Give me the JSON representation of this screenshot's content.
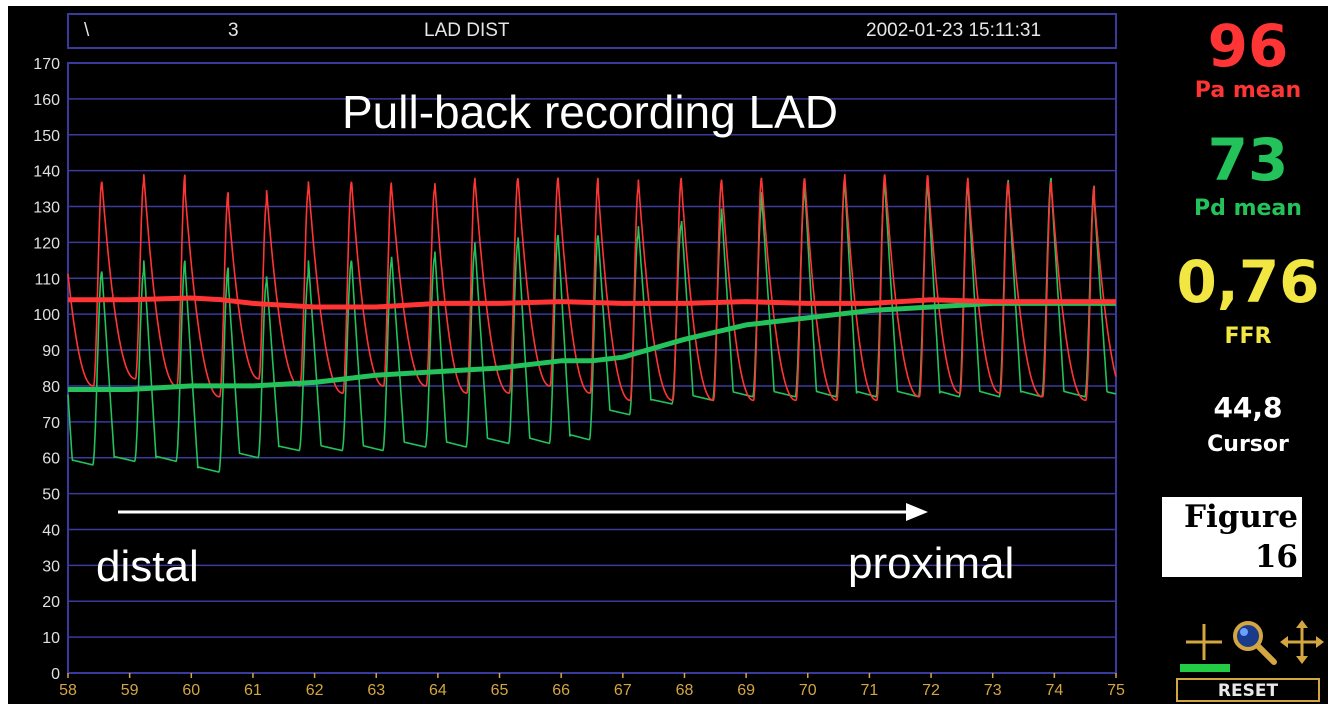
{
  "header": {
    "left_fragment": "\\",
    "fragment_2": "3",
    "vessel": "LAD DIST",
    "datetime": "2002-01-23 15:11:31"
  },
  "readouts": {
    "pa_value": "96",
    "pa_label": "Pa mean",
    "pd_value": "73",
    "pd_label": "Pd mean",
    "ffr_value": "0,76",
    "ffr_label": "FFR",
    "cursor_value": "44,8",
    "cursor_label": "Cursor"
  },
  "colors": {
    "pa": "#ff3535",
    "pd": "#23c25a",
    "ffr": "#f2e643",
    "grid": "#3a3a9c",
    "tick_x": "#d4a640",
    "tick_y": "#e0e0e0",
    "accent_tool": "#d4a640"
  },
  "figure_caption": {
    "line1": "Figure",
    "line2": "16"
  },
  "tools": {
    "icons": [
      "crosshair-plus-icon",
      "magnifier-icon",
      "move-arrows-icon"
    ],
    "reset_label": "RESET"
  },
  "chart_data": {
    "type": "line",
    "title": "Pull-back recording LAD",
    "annotations": [
      "distal",
      "proximal"
    ],
    "xlim": [
      58,
      75
    ],
    "ylim": [
      0,
      170
    ],
    "x_ticks": [
      58,
      59,
      60,
      61,
      62,
      63,
      64,
      65,
      66,
      67,
      68,
      69,
      70,
      71,
      72,
      73,
      74,
      75
    ],
    "y_ticks": [
      0,
      10,
      20,
      30,
      40,
      50,
      60,
      70,
      80,
      90,
      100,
      110,
      120,
      130,
      140,
      150,
      160,
      170
    ],
    "grid": true,
    "series": [
      {
        "name": "Pa mean",
        "kind": "mean",
        "x": [
          58,
          59,
          60,
          60.5,
          61,
          61.5,
          62,
          63,
          64,
          65,
          66,
          67,
          68,
          69,
          70,
          71,
          72,
          73,
          74,
          75
        ],
        "y": [
          104,
          104,
          104.5,
          104,
          103,
          102.5,
          102,
          102,
          103,
          103,
          103.5,
          103,
          103,
          103.5,
          103,
          103,
          104,
          103.5,
          103.5,
          103.5
        ]
      },
      {
        "name": "Pd mean",
        "kind": "mean",
        "x": [
          58,
          59,
          60,
          61,
          62,
          63,
          64,
          65,
          66,
          66.5,
          67,
          68,
          69,
          70,
          71,
          72,
          73,
          74,
          75
        ],
        "y": [
          79,
          79,
          80,
          80,
          81,
          83,
          84,
          85,
          87,
          87,
          88,
          93,
          97,
          99,
          101,
          102,
          103,
          103,
          103
        ]
      },
      {
        "name": "Pa",
        "kind": "phasic",
        "beat_times": [
          58.55,
          59.23,
          59.9,
          60.6,
          61.22,
          61.9,
          62.6,
          63.25,
          63.95,
          64.6,
          65.3,
          65.95,
          66.6,
          67.25,
          67.95,
          68.6,
          69.25,
          69.95,
          70.6,
          71.25,
          71.95,
          72.6,
          73.25,
          73.95,
          74.65
        ],
        "systolic": [
          137,
          139,
          134,
          131,
          135,
          137,
          137,
          135,
          137,
          138,
          138,
          138,
          135,
          138,
          137,
          138,
          138,
          138,
          139,
          139,
          138,
          137,
          137,
          136,
          132
        ],
        "diastolic": [
          80,
          82,
          80,
          77,
          82,
          80,
          78,
          80,
          80,
          78,
          78,
          80,
          78,
          76,
          76,
          76,
          76,
          76,
          76,
          76,
          77,
          78,
          78,
          77,
          76
        ]
      },
      {
        "name": "Pd",
        "kind": "phasic",
        "beat_times": [
          58.55,
          59.23,
          59.9,
          60.6,
          61.22,
          61.9,
          62.6,
          63.25,
          63.95,
          64.6,
          65.3,
          65.95,
          66.6,
          67.25,
          67.95,
          68.6,
          69.25,
          69.95,
          70.6,
          71.25,
          71.95,
          72.6,
          73.25,
          73.95,
          74.65
        ],
        "systolic": [
          112,
          115,
          113,
          109,
          111,
          115,
          115,
          116,
          118,
          120,
          122,
          122,
          122,
          125,
          127,
          130,
          134,
          136,
          137,
          136,
          136,
          136,
          138,
          136,
          131
        ],
        "diastolic": [
          58,
          59,
          59,
          56,
          60,
          62,
          62,
          62,
          63,
          63,
          64,
          64,
          65,
          72,
          75,
          76,
          77,
          77,
          77,
          77,
          77,
          77,
          77,
          77,
          77
        ]
      }
    ]
  }
}
